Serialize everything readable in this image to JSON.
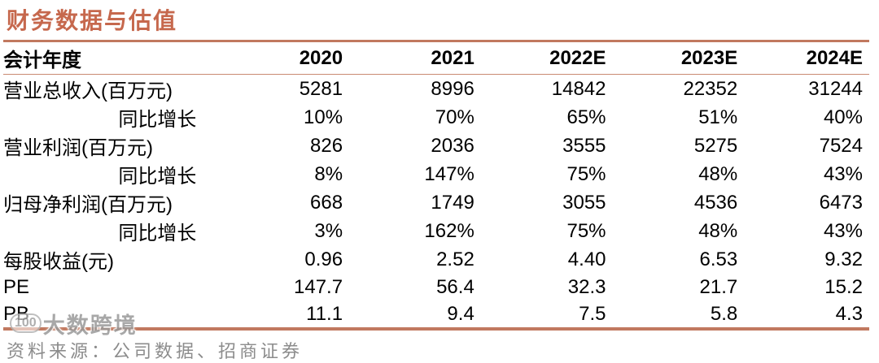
{
  "title": "财务数据与估值",
  "table": {
    "header": {
      "label": "会计年度",
      "years": [
        "2020",
        "2021",
        "2022E",
        "2023E",
        "2024E"
      ]
    },
    "rows": [
      {
        "label": "营业总收入(百万元)",
        "values": [
          "5281",
          "8996",
          "14842",
          "22352",
          "31244"
        ]
      },
      {
        "label": "同比增长",
        "values": [
          "10%",
          "70%",
          "65%",
          "51%",
          "40%"
        ]
      },
      {
        "label": "营业利润(百万元)",
        "values": [
          "826",
          "2036",
          "3555",
          "5275",
          "7524"
        ]
      },
      {
        "label": "同比增长",
        "values": [
          "8%",
          "147%",
          "75%",
          "48%",
          "43%"
        ]
      },
      {
        "label": "归母净利润(百万元)",
        "values": [
          "668",
          "1749",
          "3055",
          "4536",
          "6473"
        ]
      },
      {
        "label": "同比增长",
        "values": [
          "3%",
          "162%",
          "75%",
          "48%",
          "43%"
        ]
      },
      {
        "label": "每股收益(元)",
        "values": [
          "0.96",
          "2.52",
          "4.40",
          "6.53",
          "9.32"
        ]
      },
      {
        "label": "PE",
        "values": [
          "147.7",
          "56.4",
          "32.3",
          "21.7",
          "15.2"
        ]
      },
      {
        "label": "PB",
        "values": [
          "11.1",
          "9.4",
          "7.5",
          "5.8",
          "4.3"
        ]
      }
    ]
  },
  "footer": {
    "source": "资料来源：公司数据、招商证券"
  },
  "watermark": {
    "logo": "100",
    "text": "大数跨境"
  },
  "colors": {
    "accent_rule": "#c1795f",
    "title_text": "#c6684d",
    "body_text": "#000000",
    "footer_text": "#8c8c8c",
    "watermark_text": "#9a9a9a"
  }
}
